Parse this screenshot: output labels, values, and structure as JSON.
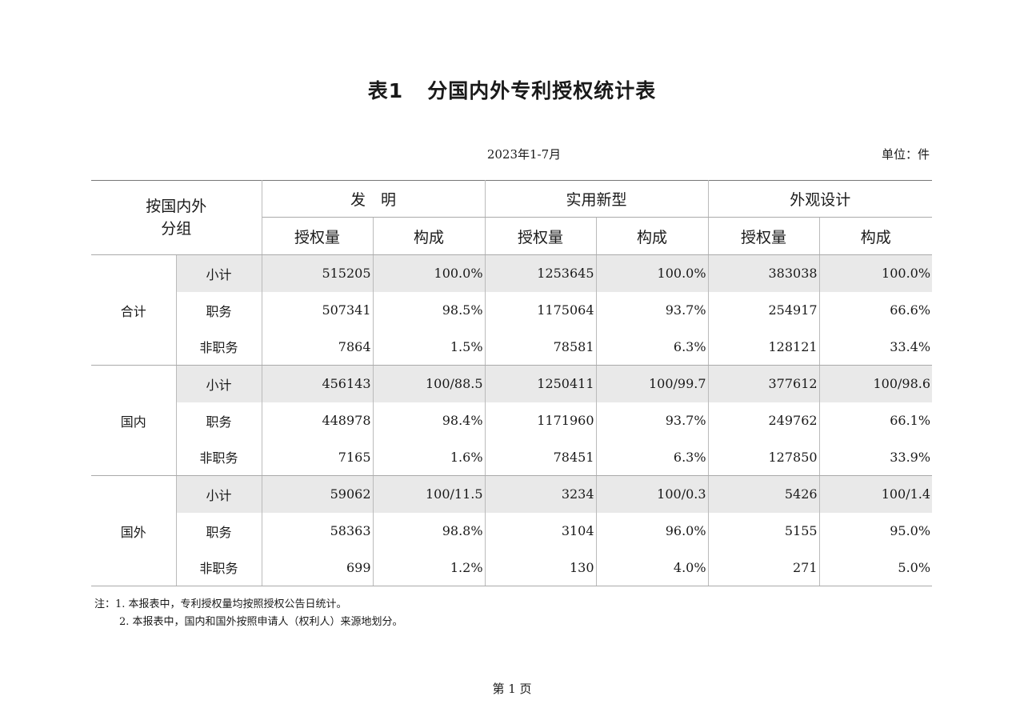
{
  "title": {
    "number": "表1",
    "text": "分国内外专利授权统计表"
  },
  "period": "2023年1-7月",
  "unit": "单位：件",
  "header": {
    "group_col": [
      "按国内外",
      "分组"
    ],
    "categories": [
      "发　明",
      "实用新型",
      "外观设计"
    ],
    "subcols": [
      "授权量",
      "构成"
    ]
  },
  "groups": [
    {
      "name": "合计",
      "rows": [
        {
          "label": "小计",
          "cells": [
            "515205",
            "100.0%",
            "1253645",
            "100.0%",
            "383038",
            "100.0%"
          ]
        },
        {
          "label": "职务",
          "cells": [
            "507341",
            "98.5%",
            "1175064",
            "93.7%",
            "254917",
            "66.6%"
          ]
        },
        {
          "label": "非职务",
          "cells": [
            "7864",
            "1.5%",
            "78581",
            "6.3%",
            "128121",
            "33.4%"
          ]
        }
      ]
    },
    {
      "name": "国内",
      "rows": [
        {
          "label": "小计",
          "cells": [
            "456143",
            "100/88.5",
            "1250411",
            "100/99.7",
            "377612",
            "100/98.6"
          ]
        },
        {
          "label": "职务",
          "cells": [
            "448978",
            "98.4%",
            "1171960",
            "93.7%",
            "249762",
            "66.1%"
          ]
        },
        {
          "label": "非职务",
          "cells": [
            "7165",
            "1.6%",
            "78451",
            "6.3%",
            "127850",
            "33.9%"
          ]
        }
      ]
    },
    {
      "name": "国外",
      "rows": [
        {
          "label": "小计",
          "cells": [
            "59062",
            "100/11.5",
            "3234",
            "100/0.3",
            "5426",
            "100/1.4"
          ]
        },
        {
          "label": "职务",
          "cells": [
            "58363",
            "98.8%",
            "3104",
            "96.0%",
            "5155",
            "95.0%"
          ]
        },
        {
          "label": "非职务",
          "cells": [
            "699",
            "1.2%",
            "130",
            "4.0%",
            "271",
            "5.0%"
          ]
        }
      ]
    }
  ],
  "notes": [
    "注：1. 本报表中，专利授权量均按照授权公告日统计。",
    "2. 本报表中，国内和国外按照申请人（权利人）来源地划分。"
  ],
  "page_label": "第 1 页"
}
